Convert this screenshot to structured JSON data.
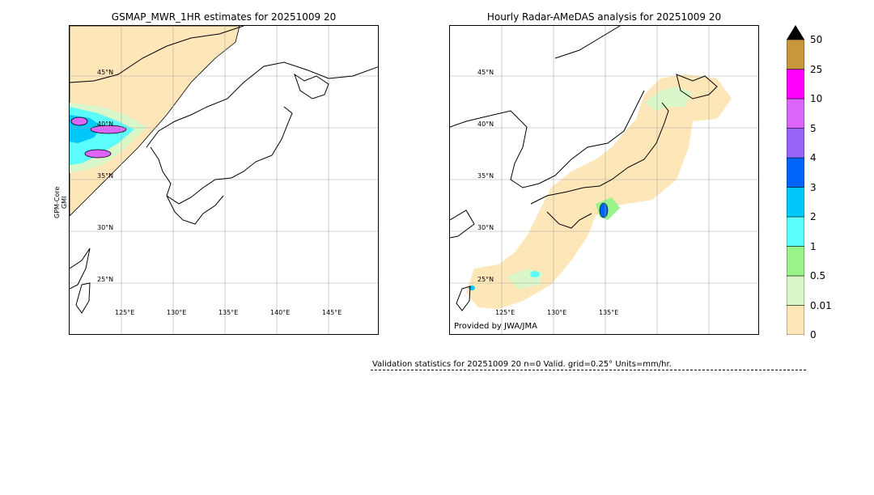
{
  "left_panel": {
    "title": "GSMAP_MWR_1HR estimates for 20251009 20",
    "side_label_line1": "GPM-Core",
    "side_label_line2": "GMI",
    "lat_labels": [
      "45°N",
      "40°N",
      "35°N",
      "30°N",
      "25°N"
    ],
    "lon_labels": [
      "125°E",
      "130°E",
      "135°E",
      "140°E",
      "145°E"
    ]
  },
  "right_panel": {
    "title": "Hourly Radar-AMeDAS analysis for 20251009 20",
    "credit": "Provided by JWA/JMA",
    "lat_labels": [
      "45°N",
      "40°N",
      "35°N",
      "30°N",
      "25°N"
    ],
    "lon_labels": [
      "125°E",
      "130°E",
      "135°E"
    ]
  },
  "colorbar": {
    "labels": [
      "50",
      "25",
      "10",
      "5",
      "4",
      "3",
      "2",
      "1",
      "0.5",
      "0.01",
      "0"
    ],
    "colors": [
      "#fde6b8",
      "#d9f7c8",
      "#98f488",
      "#5cfcfc",
      "#00c8f8",
      "#0064f8",
      "#9664f8",
      "#dc64f8",
      "#ff00ff",
      "#c8963c"
    ],
    "overflow_color": "#000000"
  },
  "validation": {
    "text": "Validation statistics for 20251009 20  n=0 Valid. grid=0.25° Units=mm/hr."
  }
}
